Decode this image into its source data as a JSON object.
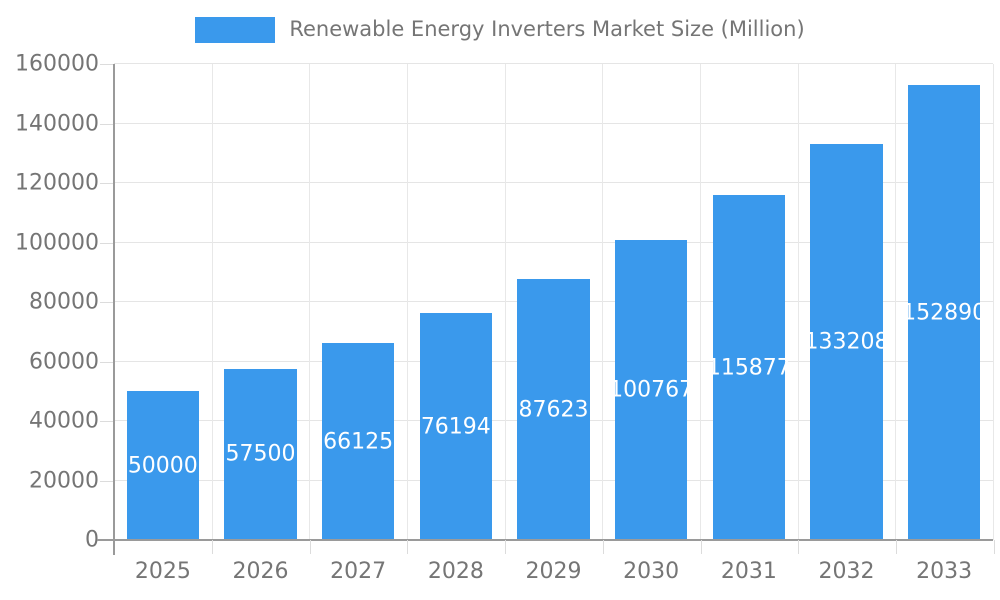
{
  "legend": {
    "label": "Renewable Energy Inverters Market Size (Million)"
  },
  "chart_data": {
    "type": "bar",
    "title": "Renewable Energy Inverters Market Size (Million)",
    "categories": [
      "2025",
      "2026",
      "2027",
      "2028",
      "2029",
      "2030",
      "2031",
      "2032",
      "2033"
    ],
    "values": [
      50000,
      57500,
      66125,
      76194,
      87623,
      100767,
      115877,
      133208,
      152890
    ],
    "bar_labels": [
      "50000",
      "57500",
      "66125",
      "76194",
      "87623",
      "100767",
      "115877",
      "133208",
      "152890"
    ],
    "xlabel": "",
    "ylabel": "",
    "ylim": [
      0,
      160000
    ],
    "y_ticks": [
      0,
      20000,
      40000,
      60000,
      80000,
      100000,
      120000,
      140000,
      160000
    ],
    "y_tick_labels": [
      "0",
      "20000",
      "40000",
      "60000",
      "80000",
      "100000",
      "120000",
      "140000",
      "160000"
    ],
    "grid": true,
    "legend_position": "top",
    "colors": {
      "bar": "#3A99EC",
      "bar_label_text": "#ffffff",
      "axis_text": "#757575",
      "axis_line": "#9a9a9a",
      "grid_line_h": "#e5e5e5",
      "grid_line_v": "#e8e8e8",
      "tick_line": "#dcdcdc",
      "background": "#ffffff"
    }
  }
}
